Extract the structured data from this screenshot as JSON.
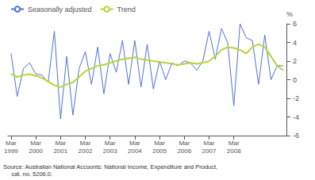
{
  "chart_data": {
    "type": "line",
    "categories": [
      "Mar\n1999",
      null,
      null,
      null,
      "Mar\n2000",
      null,
      null,
      null,
      "Mar\n2001",
      null,
      null,
      null,
      "Mar\n2002",
      null,
      null,
      null,
      "Mar\n2003",
      null,
      null,
      null,
      "Mar\n2004",
      null,
      null,
      null,
      "Mar\n2005",
      null,
      null,
      null,
      "Mar\n2006",
      null,
      null,
      null,
      "Mar\n2007",
      null,
      null,
      null,
      "Mar\n2008",
      null,
      null,
      null,
      null,
      null,
      null,
      null,
      null
    ],
    "series": [
      {
        "name": "Seasonally adjusted",
        "values": [
          2.8,
          -1.8,
          1.2,
          1.8,
          0.6,
          0.5,
          -0.3,
          5.2,
          -4.2,
          2.5,
          -3.8,
          1.2,
          3.0,
          -0.5,
          3.5,
          -1.5,
          2.8,
          0.8,
          4.2,
          -0.5,
          4.2,
          -0.8,
          3.8,
          -1.0,
          2.0,
          0.0,
          1.8,
          1.5,
          2.0,
          1.8,
          1.0,
          2.0,
          5.2,
          2.2,
          5.5,
          4.0,
          -2.8,
          6.0,
          4.5,
          4.2,
          -0.5,
          4.8,
          0.0,
          1.5,
          1.5
        ]
      },
      {
        "name": "Trend",
        "values": [
          0.6,
          0.3,
          0.5,
          0.6,
          0.4,
          0.2,
          -0.2,
          -0.6,
          -0.8,
          -0.5,
          -0.3,
          0.3,
          0.9,
          1.2,
          1.5,
          1.6,
          1.8,
          2.0,
          2.2,
          2.3,
          2.4,
          2.2,
          2.1,
          2.0,
          1.9,
          1.8,
          1.7,
          1.6,
          1.7,
          1.8,
          1.7,
          1.8,
          2.0,
          2.5,
          3.2,
          3.5,
          3.4,
          3.2,
          2.8,
          3.5,
          3.8,
          3.5,
          2.5,
          1.5,
          1.0
        ]
      }
    ],
    "ylabel": "%",
    "ylim": [
      -6,
      6
    ],
    "yticks": [
      -6,
      -4,
      -2,
      0,
      2,
      4,
      6
    ],
    "grid": false,
    "legend": "upper left",
    "annotations": [
      "Source: Australian National Accounts: National Income, Expenditure and Product,",
      "     cat. no. 5206.0."
    ]
  }
}
